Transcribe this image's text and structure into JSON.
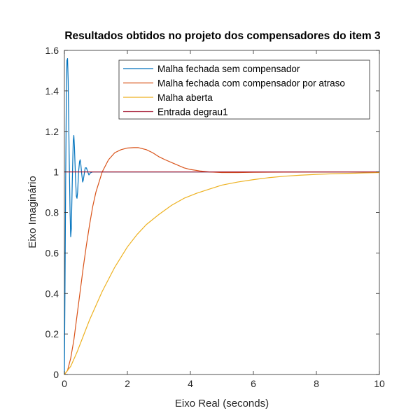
{
  "chart_data": {
    "type": "line",
    "title": "Resultados obtidos no projeto dos compensadores do item 3",
    "xlabel": "Eixo Real (seconds)",
    "ylabel": "Eixo Imaginário",
    "xlim": [
      0,
      10
    ],
    "ylim": [
      0,
      1.6
    ],
    "xticks": [
      0,
      2,
      4,
      6,
      8,
      10
    ],
    "yticks": [
      0,
      0.2,
      0.4,
      0.6,
      0.8,
      1,
      1.2,
      1.4,
      1.6
    ],
    "grid": false,
    "legend_position": "top-right",
    "series": [
      {
        "name": "Malha fechada sem compensador",
        "color": "#0072BD",
        "x": [
          0,
          0.02,
          0.04,
          0.06,
          0.08,
          0.1,
          0.12,
          0.15,
          0.18,
          0.2,
          0.22,
          0.25,
          0.28,
          0.3,
          0.32,
          0.35,
          0.38,
          0.4,
          0.42,
          0.45,
          0.48,
          0.5,
          0.52,
          0.55,
          0.58,
          0.6,
          0.63,
          0.66,
          0.7,
          0.74,
          0.78,
          0.82,
          0.9,
          1.0,
          1.2,
          1.5,
          2,
          3,
          4,
          5,
          6,
          7,
          8,
          9,
          10
        ],
        "y": [
          0,
          0.45,
          0.95,
          1.35,
          1.55,
          1.56,
          1.45,
          1.1,
          0.8,
          0.68,
          0.72,
          0.95,
          1.15,
          1.18,
          1.12,
          0.98,
          0.88,
          0.87,
          0.9,
          1.0,
          1.05,
          1.06,
          1.04,
          0.99,
          0.95,
          0.96,
          0.99,
          1.02,
          1.02,
          1.0,
          0.985,
          0.995,
          1.0,
          1.0,
          1.0,
          1.0,
          1.0,
          1.0,
          1.0,
          1.0,
          1.0,
          1.0,
          1.0,
          1.0,
          1.0
        ]
      },
      {
        "name": "Malha fechada com compensador por atraso",
        "color": "#D95319",
        "x": [
          0,
          0.1,
          0.2,
          0.3,
          0.4,
          0.5,
          0.6,
          0.7,
          0.8,
          0.9,
          1.0,
          1.2,
          1.4,
          1.6,
          1.8,
          2.0,
          2.2,
          2.35,
          2.6,
          2.8,
          3.0,
          3.2,
          3.5,
          3.8,
          4.0,
          4.3,
          4.6,
          5.0,
          5.5,
          6.0,
          7.0,
          8.0,
          9.0,
          10.0
        ],
        "y": [
          0,
          0.02,
          0.08,
          0.17,
          0.29,
          0.41,
          0.53,
          0.64,
          0.74,
          0.83,
          0.9,
          1.0,
          1.06,
          1.095,
          1.11,
          1.118,
          1.12,
          1.12,
          1.11,
          1.095,
          1.075,
          1.06,
          1.04,
          1.02,
          1.012,
          1.005,
          1.0,
          0.997,
          0.997,
          0.998,
          0.999,
          1.0,
          1.0,
          1.0
        ]
      },
      {
        "name": "Malha aberta",
        "color": "#EDB120",
        "x": [
          0,
          0.2,
          0.4,
          0.6,
          0.8,
          1.0,
          1.2,
          1.4,
          1.6,
          1.8,
          2.0,
          2.3,
          2.6,
          3.0,
          3.4,
          3.8,
          4.2,
          4.6,
          5.0,
          5.5,
          6.0,
          6.5,
          7.0,
          7.5,
          8.0,
          8.5,
          9.0,
          9.5,
          10.0
        ],
        "y": [
          0,
          0.04,
          0.11,
          0.19,
          0.27,
          0.34,
          0.41,
          0.47,
          0.53,
          0.58,
          0.63,
          0.69,
          0.74,
          0.79,
          0.835,
          0.87,
          0.895,
          0.915,
          0.935,
          0.95,
          0.962,
          0.972,
          0.979,
          0.984,
          0.988,
          0.991,
          0.993,
          0.995,
          0.997
        ]
      },
      {
        "name": "Entrada degrau1",
        "color": "#A2142F",
        "x": [
          0,
          10
        ],
        "y": [
          1,
          1
        ]
      }
    ]
  }
}
